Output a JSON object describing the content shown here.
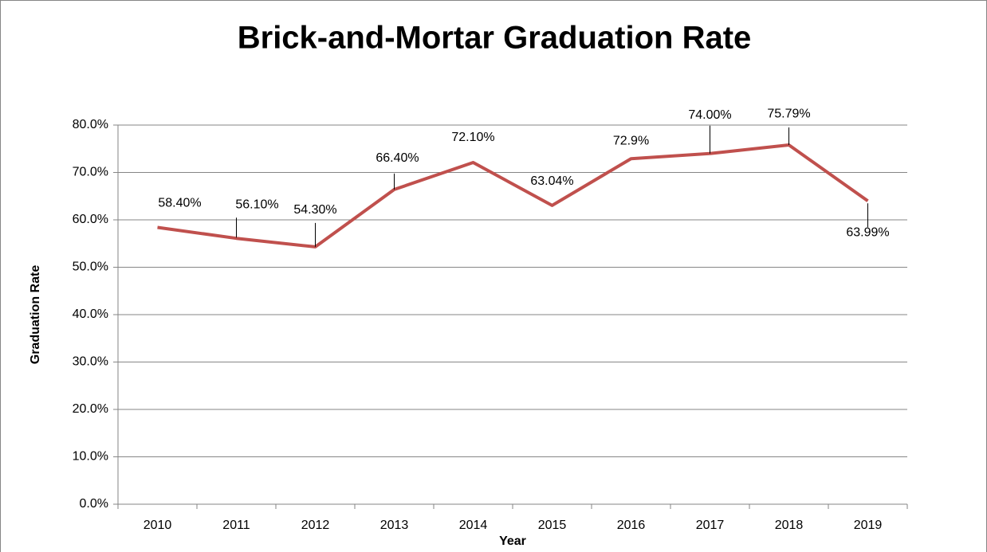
{
  "chart_data": {
    "type": "line",
    "title": "Brick-and-Mortar Graduation Rate",
    "x_label": "Year",
    "y_label": "Graduation Rate",
    "categories": [
      "2010",
      "2011",
      "2012",
      "2013",
      "2014",
      "2015",
      "2016",
      "2017",
      "2018",
      "2019"
    ],
    "series": [
      {
        "name": "Graduation Rate",
        "color": "#c0504d",
        "values": [
          58.4,
          56.1,
          54.3,
          66.4,
          72.1,
          63.04,
          72.9,
          74.0,
          75.79,
          63.99
        ],
        "value_labels": [
          "58.40%",
          "56.10%",
          "54.30%",
          "66.40%",
          "72.10%",
          "63.04%",
          "72.9%",
          "74.00%",
          "75.79%",
          "63.99%"
        ]
      }
    ],
    "ylim": [
      0,
      80
    ],
    "yticks": [
      {
        "value": 0,
        "label": "0.0%"
      },
      {
        "value": 10,
        "label": "10.0%"
      },
      {
        "value": 20,
        "label": "20.0%"
      },
      {
        "value": 30,
        "label": "30.0%"
      },
      {
        "value": 40,
        "label": "40.0%"
      },
      {
        "value": 50,
        "label": "50.0%"
      },
      {
        "value": 60,
        "label": "60.0%"
      },
      {
        "value": 70,
        "label": "70.0%"
      },
      {
        "value": 80,
        "label": "80.0%"
      }
    ],
    "grid": true
  }
}
